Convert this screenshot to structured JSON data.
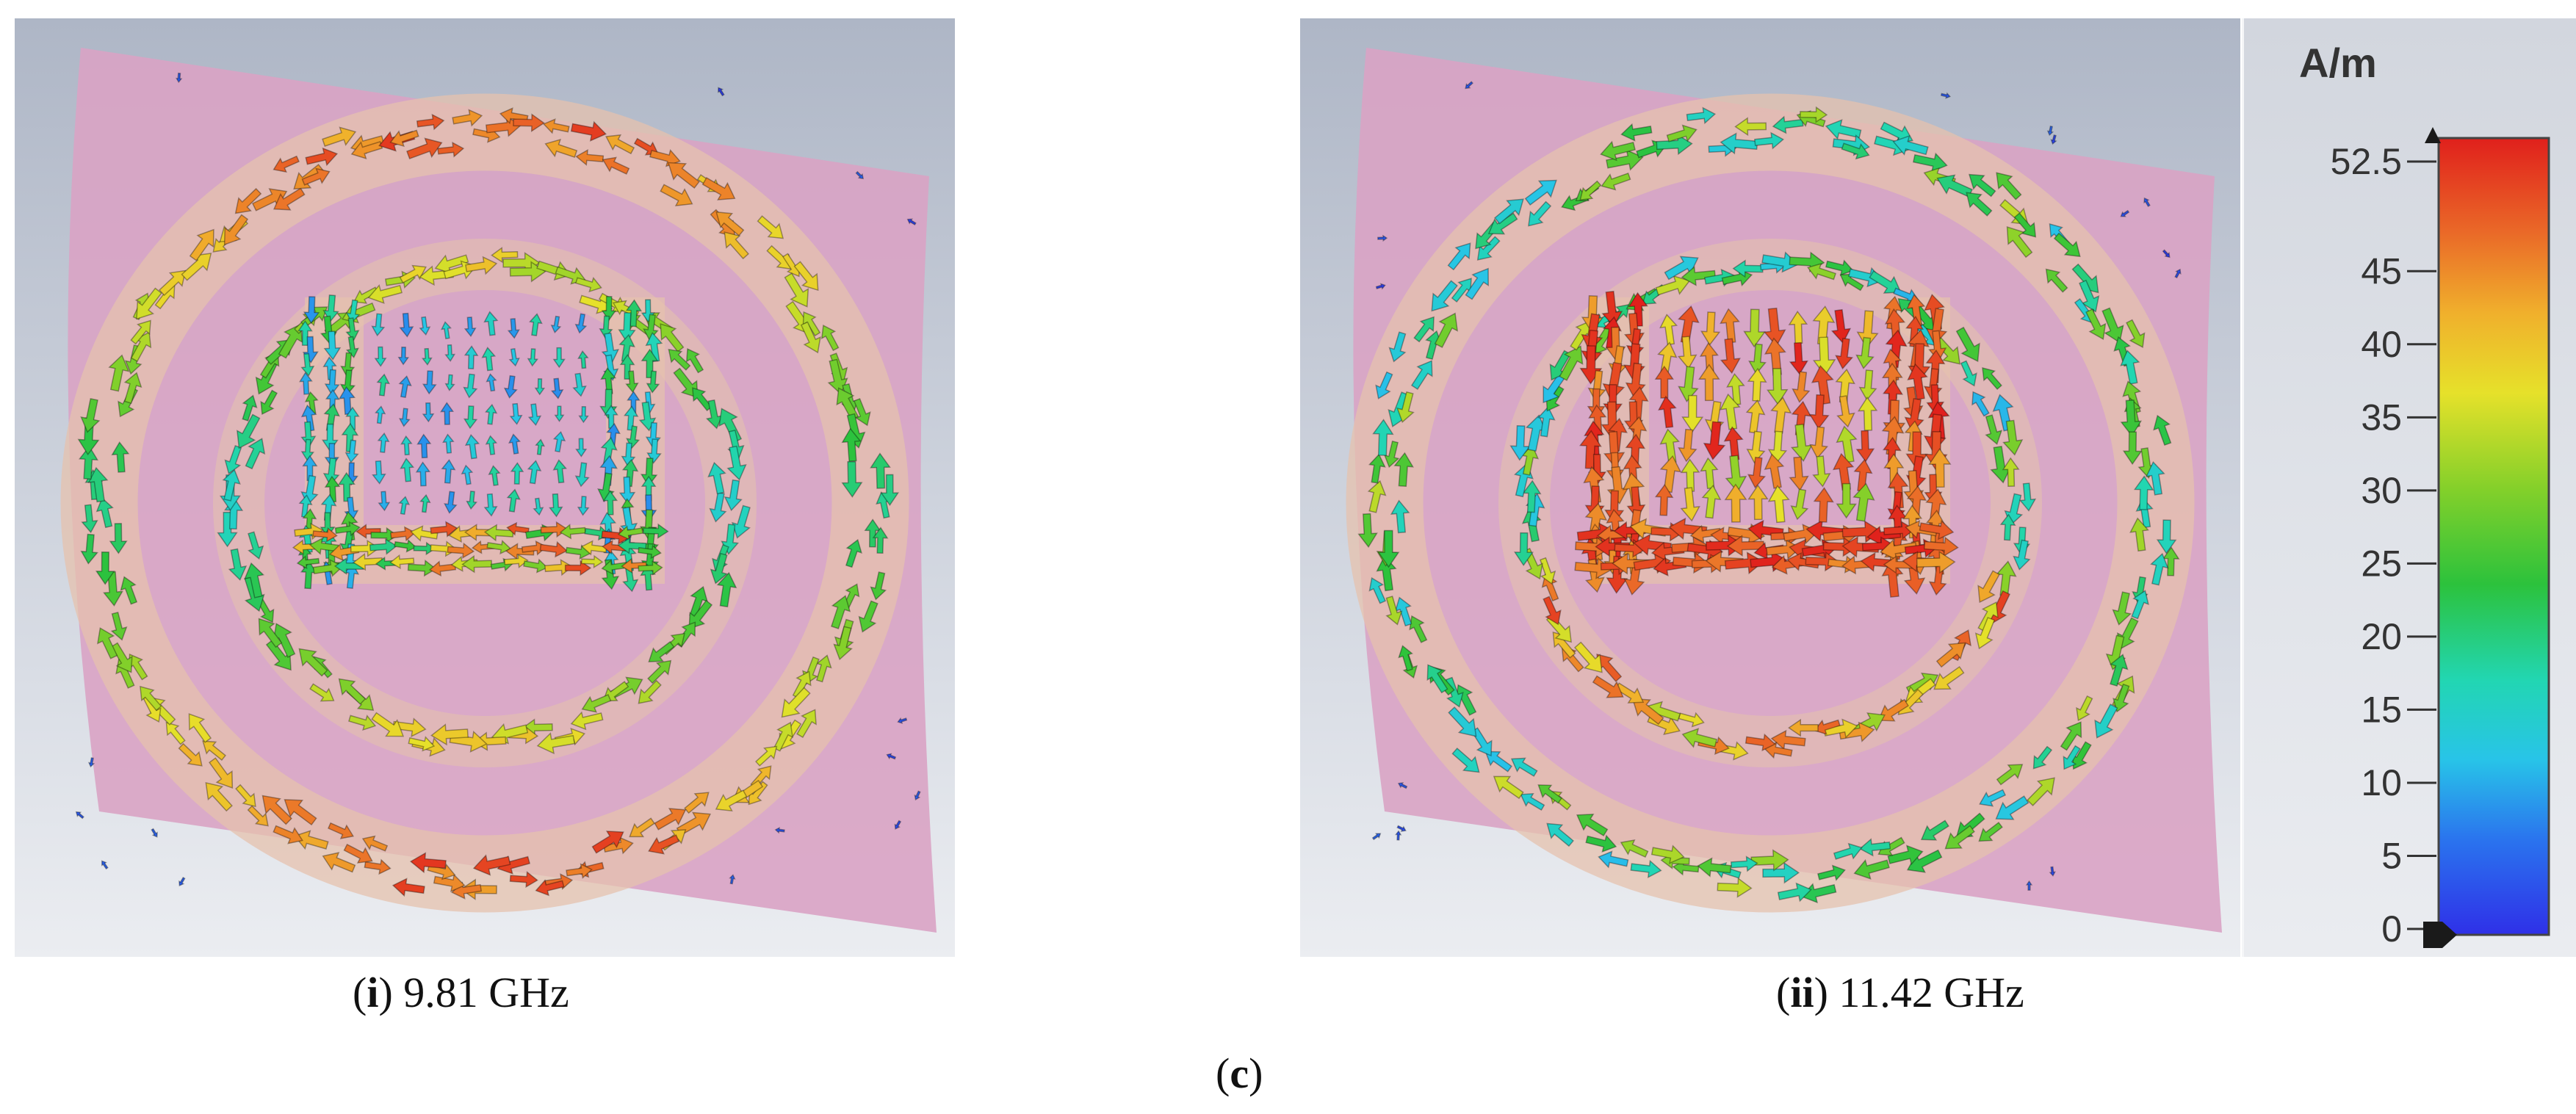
{
  "figure": {
    "label": "(c)",
    "label_letter": "c",
    "panels": [
      {
        "id": "i",
        "caption_prefix": "i",
        "caption_value": "9.81 GHz",
        "mode": "ring"
      },
      {
        "id": "ii",
        "caption_prefix": "ii",
        "caption_value": "11.42 GHz",
        "mode": "center"
      }
    ]
  },
  "colors": {
    "substrate": "#d9a3c4",
    "ring": "#e5c2ad",
    "min": "#2f38e0",
    "max": "#e0201c"
  },
  "legend": {
    "unit": "A/m",
    "max_label": "52.5",
    "max_value": 52.5,
    "min_value": 0,
    "ticks": [
      {
        "value": 52.5,
        "label": "52.5"
      },
      {
        "value": 45,
        "label": "45"
      },
      {
        "value": 40,
        "label": "40"
      },
      {
        "value": 35,
        "label": "35"
      },
      {
        "value": 30,
        "label": "30"
      },
      {
        "value": 25,
        "label": "25"
      },
      {
        "value": 20,
        "label": "20"
      },
      {
        "value": 15,
        "label": "15"
      },
      {
        "value": 10,
        "label": "10"
      },
      {
        "value": 5,
        "label": "5"
      },
      {
        "value": 0,
        "label": "0"
      }
    ]
  }
}
